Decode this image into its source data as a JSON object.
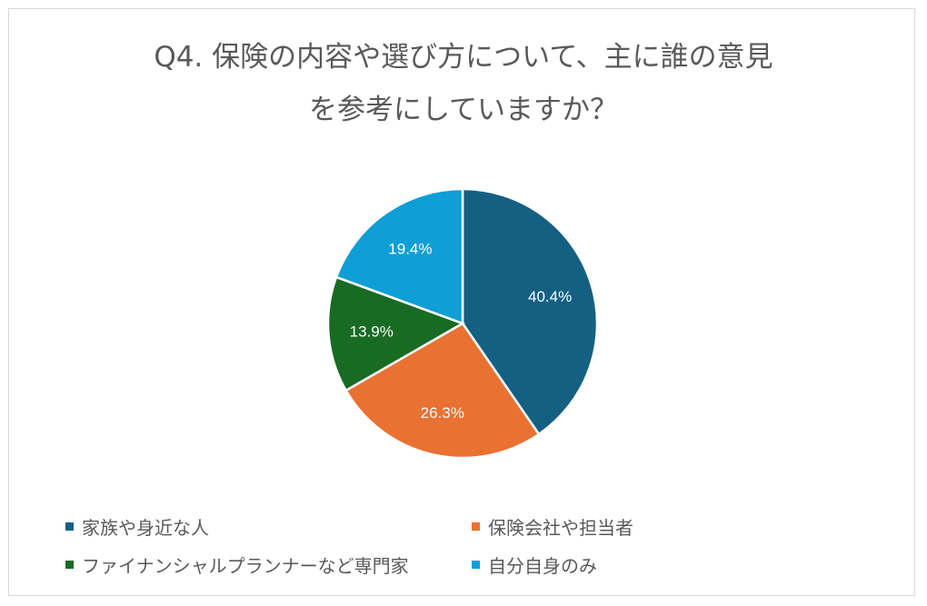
{
  "chart_data": {
    "type": "pie",
    "title_lines": [
      "Q4. 保険の内容や選び方について、主に誰の意見",
      "を参考にしていますか？"
    ],
    "categories": [
      "家族や身近な人",
      "保険会社や担当者",
      "ファイナンシャルプランナーなど専門家",
      "自分自身のみ"
    ],
    "values": [
      40.4,
      26.3,
      13.9,
      19.4
    ],
    "data_labels": [
      "40.4%",
      "26.3%",
      "13.9%",
      "19.4%"
    ],
    "colors": [
      "#156082",
      "#E97132",
      "#196B24",
      "#0F9ED5"
    ],
    "start_angle": "top, clockwise",
    "legend_position": "bottom"
  }
}
